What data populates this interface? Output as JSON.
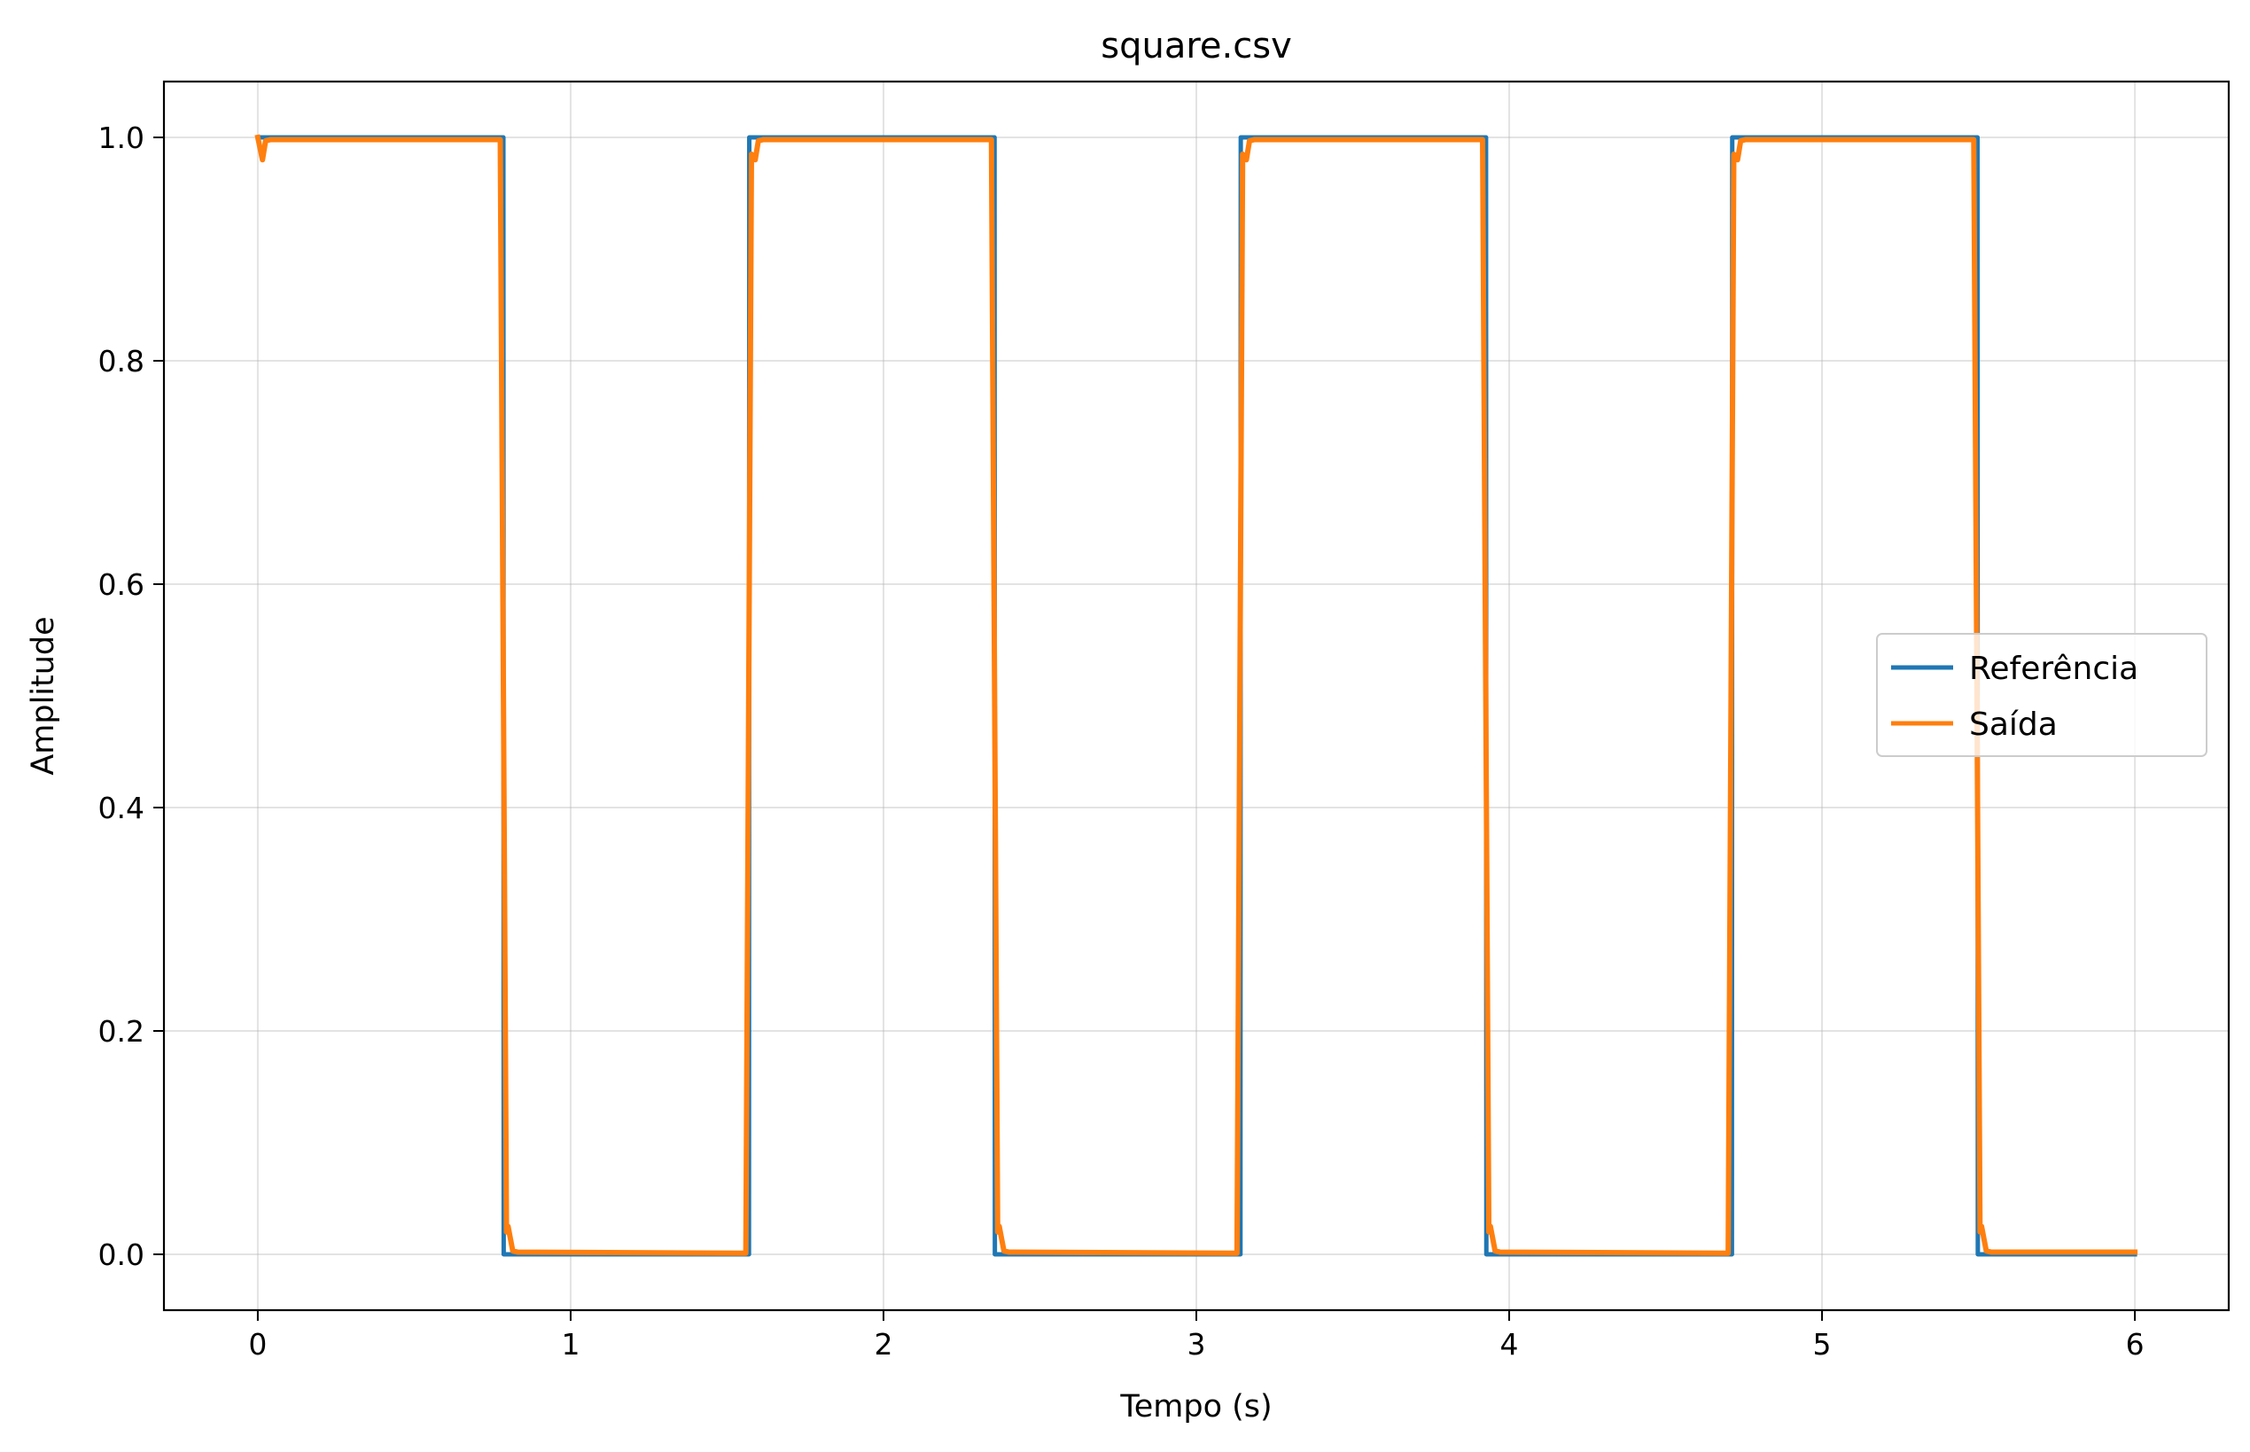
{
  "chart_data": {
    "type": "line",
    "title": "square.csv",
    "xlabel": "Tempo (s)",
    "ylabel": "Amplitude",
    "xlim": [
      -0.3,
      6.3
    ],
    "ylim": [
      -0.05,
      1.05
    ],
    "xticks": [
      0,
      1,
      2,
      3,
      4,
      5,
      6
    ],
    "xtick_labels": [
      "0",
      "1",
      "2",
      "3",
      "4",
      "5",
      "6"
    ],
    "yticks": [
      0.0,
      0.2,
      0.4,
      0.6,
      0.8,
      1.0
    ],
    "ytick_labels": [
      "0.0",
      "0.2",
      "0.4",
      "0.6",
      "0.8",
      "1.0"
    ],
    "grid": true,
    "legend_position": "center-right",
    "series": [
      {
        "name": "Referência",
        "color": "#1f77b4",
        "x": [
          0.0,
          0.785,
          0.786,
          1.57,
          1.571,
          2.355,
          2.356,
          3.141,
          3.142,
          3.926,
          3.927,
          4.712,
          4.713,
          5.497,
          5.498,
          6.0
        ],
        "y": [
          1,
          1,
          0,
          0,
          1,
          1,
          0,
          0,
          1,
          1,
          0,
          0,
          1,
          1,
          0,
          0
        ]
      },
      {
        "name": "Saída",
        "color": "#ff7f0e",
        "x": [
          0.0,
          0.015,
          0.025,
          0.04,
          0.775,
          0.795,
          0.8,
          0.815,
          0.83,
          1.56,
          1.578,
          1.59,
          1.6,
          1.615,
          2.345,
          2.365,
          2.37,
          2.385,
          2.4,
          3.13,
          3.148,
          3.16,
          3.17,
          3.185,
          3.915,
          3.935,
          3.94,
          3.955,
          3.97,
          4.7,
          4.718,
          4.73,
          4.74,
          4.755,
          5.485,
          5.505,
          5.51,
          5.525,
          5.54,
          6.0
        ],
        "y": [
          1.0,
          0.98,
          0.997,
          0.998,
          0.998,
          0.02,
          0.025,
          0.003,
          0.002,
          0.001,
          0.985,
          0.98,
          0.997,
          0.998,
          0.998,
          0.02,
          0.025,
          0.003,
          0.002,
          0.001,
          0.985,
          0.98,
          0.997,
          0.998,
          0.998,
          0.02,
          0.025,
          0.003,
          0.002,
          0.001,
          0.985,
          0.98,
          0.997,
          0.998,
          0.998,
          0.02,
          0.025,
          0.003,
          0.002,
          0.002
        ]
      }
    ]
  }
}
